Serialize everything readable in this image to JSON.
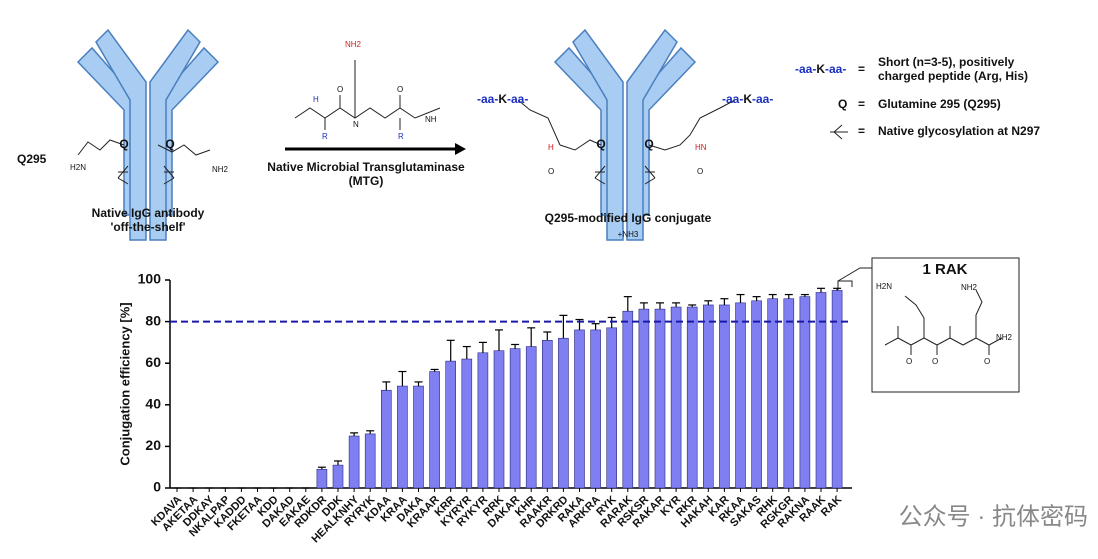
{
  "chart_data": {
    "type": "bar",
    "ylabel": "Conjugation efficiency [%]",
    "categories": [
      "KDAVA",
      "AKETAA",
      "DDKAY",
      "NKALPAP",
      "KADDD",
      "FKETAA",
      "KDD",
      "DAKAD",
      "EAKAE",
      "RDKDR",
      "DDK",
      "HEALKNHY",
      "RYRYK",
      "KDAA",
      "KRAA",
      "DAKA",
      "KRAAR",
      "KRR",
      "KYRYR",
      "RYKYR",
      "RRK",
      "DAKAR",
      "KHR",
      "RAAKR",
      "DRKRD",
      "RAKA",
      "ARKRA",
      "RYK",
      "RARAK",
      "RSKSR",
      "RAKAR",
      "KYR",
      "RKR",
      "HAKAH",
      "KAR",
      "RKAA",
      "SAKAS",
      "RHK",
      "RGKGR",
      "RAKNA",
      "RAAK",
      "RAK"
    ],
    "values": [
      0,
      0,
      0,
      0,
      0,
      0,
      0,
      0,
      0,
      9,
      11,
      25,
      26,
      47,
      49,
      49,
      56,
      61,
      62,
      65,
      66,
      67,
      68,
      71,
      72,
      76,
      76,
      77,
      85,
      86,
      86,
      87,
      87,
      88,
      88,
      89,
      90,
      91,
      91,
      92,
      94,
      95
    ],
    "errors": [
      0,
      0,
      0,
      0,
      0,
      0,
      0,
      0,
      0,
      1,
      2,
      1.5,
      1.5,
      4,
      7,
      2,
      1,
      10,
      6,
      5,
      10,
      2,
      9,
      4,
      11,
      5,
      3,
      5,
      7,
      3,
      3,
      2,
      1,
      2,
      3,
      4,
      2,
      2,
      2,
      1,
      2,
      1
    ],
    "color": "#7f7ff2",
    "ylim": [
      0,
      100
    ],
    "yticks": [
      0,
      20,
      40,
      60,
      80,
      100
    ],
    "reference_line": 80,
    "reference_color": "#1a1aa8"
  },
  "figure": {
    "q295": "Q295",
    "q": "Q",
    "left_label": [
      "Native IgG antibody",
      "'off-the-shelf'"
    ],
    "arrow_label": [
      "Native Microbial Transglutaminase",
      "(MTG)"
    ],
    "peptide": [
      "-aa-",
      "K",
      "-aa-"
    ],
    "right_label": "Q295-modified IgG conjugate",
    "byproduct": "+NH3",
    "legend": {
      "eq": "=",
      "peptide_text": [
        "Short (n=3-5), positively",
        "charged peptide (Arg, His)"
      ],
      "q_text": "Glutamine 295 (Q295)",
      "glyco_text": "Native glycosylation at N297"
    },
    "chem": {
      "nh2": "NH2",
      "h2n": "H2N",
      "o": "O",
      "n": "N",
      "h": "H",
      "r": "R",
      "hn": "HN",
      "nh": "NH"
    },
    "inset_title": "1 RAK",
    "watermark": "公众号 · 抗体密码"
  }
}
